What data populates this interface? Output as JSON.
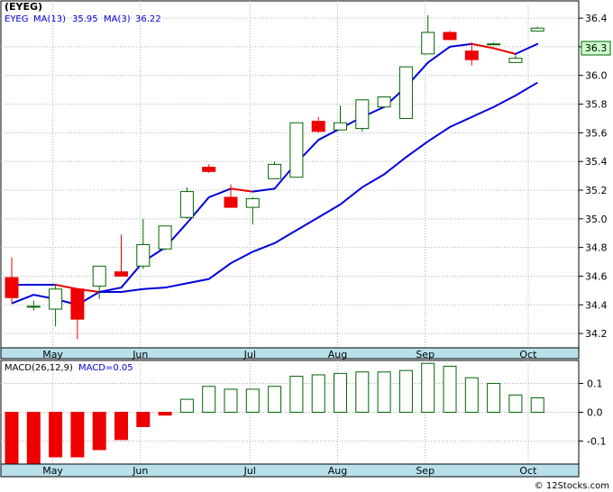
{
  "chart_data": [
    {
      "type": "candlestick",
      "ticker": "(EYEG)",
      "legend": [
        {
          "name": "MA(13)",
          "value": "35.95",
          "color": "#0000dd"
        },
        {
          "name": "MA(3)",
          "value": "36.22",
          "color": "#dd0000"
        }
      ],
      "last_price_label": "36.3",
      "ylim": [
        34.1,
        36.52
      ],
      "y_ticks": [
        "36.4",
        "36.2",
        "36.0",
        "35.8",
        "35.6",
        "35.4",
        "35.2",
        "35.0",
        "34.8",
        "34.6",
        "34.4",
        "34.2"
      ],
      "x_labels": [
        "May",
        "Jun",
        "Jul",
        "Aug",
        "Sep",
        "Oct"
      ],
      "x_label_weeks": [
        1.3,
        5.3,
        10.3,
        14.3,
        18.3,
        23.0
      ],
      "colors": {
        "up": "#006600",
        "down": "#ee0000",
        "ma13": "#0000dd",
        "ma3_up": "#0000dd",
        "ma3_down": "#ee0000",
        "axis_band": "#b8e0ea"
      },
      "candles": [
        {
          "o": 34.59,
          "h": 34.73,
          "l": 34.41,
          "c": 34.45
        },
        {
          "o": 34.39,
          "h": 34.43,
          "l": 34.36,
          "c": 34.39
        },
        {
          "o": 34.37,
          "h": 34.54,
          "l": 34.25,
          "c": 34.51
        },
        {
          "o": 34.51,
          "h": 34.51,
          "l": 34.16,
          "c": 34.3
        },
        {
          "o": 34.53,
          "h": 34.67,
          "l": 34.44,
          "c": 34.67
        },
        {
          "o": 34.63,
          "h": 34.89,
          "l": 34.6,
          "c": 34.6
        },
        {
          "o": 34.67,
          "h": 35.0,
          "l": 34.65,
          "c": 34.82
        },
        {
          "o": 34.79,
          "h": 34.95,
          "l": 34.78,
          "c": 34.95
        },
        {
          "o": 35.01,
          "h": 35.22,
          "l": 35.0,
          "c": 35.19
        },
        {
          "o": 35.36,
          "h": 35.38,
          "l": 35.32,
          "c": 35.33
        },
        {
          "o": 35.15,
          "h": 35.24,
          "l": 35.08,
          "c": 35.08
        },
        {
          "o": 35.08,
          "h": 35.15,
          "l": 34.96,
          "c": 35.14
        },
        {
          "o": 35.28,
          "h": 35.4,
          "l": 35.28,
          "c": 35.38
        },
        {
          "o": 35.29,
          "h": 35.67,
          "l": 35.29,
          "c": 35.67
        },
        {
          "o": 35.68,
          "h": 35.71,
          "l": 35.6,
          "c": 35.61
        },
        {
          "o": 35.62,
          "h": 35.79,
          "l": 35.62,
          "c": 35.67
        },
        {
          "o": 35.63,
          "h": 35.83,
          "l": 35.61,
          "c": 35.83
        },
        {
          "o": 35.78,
          "h": 35.85,
          "l": 35.78,
          "c": 35.85
        },
        {
          "o": 35.7,
          "h": 36.06,
          "l": 35.7,
          "c": 36.06
        },
        {
          "o": 36.15,
          "h": 36.42,
          "l": 36.15,
          "c": 36.3
        },
        {
          "o": 36.3,
          "h": 36.31,
          "l": 36.26,
          "c": 36.25
        },
        {
          "o": 36.17,
          "h": 36.23,
          "l": 36.07,
          "c": 36.11
        },
        {
          "o": 36.22,
          "h": 36.23,
          "l": 36.22,
          "c": 36.22
        },
        {
          "o": 36.09,
          "h": 36.14,
          "l": 36.09,
          "c": 36.12
        },
        {
          "o": 36.31,
          "h": 36.34,
          "l": 36.31,
          "c": 36.33
        }
      ],
      "ma13": [
        {
          "w": 0,
          "v": 34.41
        },
        {
          "w": 1,
          "v": 34.47
        },
        {
          "w": 2,
          "v": 34.44
        },
        {
          "w": 3,
          "v": 34.4
        },
        {
          "w": 4,
          "v": 34.49
        },
        {
          "w": 5,
          "v": 34.49
        },
        {
          "w": 6,
          "v": 34.51
        },
        {
          "w": 7,
          "v": 34.52
        },
        {
          "w": 8,
          "v": 34.55
        },
        {
          "w": 9,
          "v": 34.58
        },
        {
          "w": 10,
          "v": 34.69
        },
        {
          "w": 11,
          "v": 34.77
        },
        {
          "w": 12,
          "v": 34.83
        },
        {
          "w": 13,
          "v": 34.92
        },
        {
          "w": 14,
          "v": 35.01
        },
        {
          "w": 15,
          "v": 35.1
        },
        {
          "w": 16,
          "v": 35.22
        },
        {
          "w": 17,
          "v": 35.31
        },
        {
          "w": 18,
          "v": 35.43
        },
        {
          "w": 19,
          "v": 35.54
        },
        {
          "w": 20,
          "v": 35.64
        },
        {
          "w": 21,
          "v": 35.71
        },
        {
          "w": 22,
          "v": 35.78
        },
        {
          "w": 23,
          "v": 35.86
        },
        {
          "w": 24,
          "v": 35.95
        }
      ],
      "ma3": [
        {
          "w": 0,
          "v": 34.54
        },
        {
          "w": 1,
          "v": 34.54
        },
        {
          "w": 2,
          "v": 34.54
        },
        {
          "w": 3,
          "v": 34.51
        },
        {
          "w": 4,
          "v": 34.49
        },
        {
          "w": 5,
          "v": 34.52
        },
        {
          "w": 6,
          "v": 34.7
        },
        {
          "w": 7,
          "v": 34.8
        },
        {
          "w": 8,
          "v": 34.97
        },
        {
          "w": 9,
          "v": 35.15
        },
        {
          "w": 10,
          "v": 35.21
        },
        {
          "w": 11,
          "v": 35.19
        },
        {
          "w": 12,
          "v": 35.21
        },
        {
          "w": 13,
          "v": 35.39
        },
        {
          "w": 14,
          "v": 35.55
        },
        {
          "w": 15,
          "v": 35.63
        },
        {
          "w": 16,
          "v": 35.71
        },
        {
          "w": 17,
          "v": 35.78
        },
        {
          "w": 18,
          "v": 35.92
        },
        {
          "w": 19,
          "v": 36.09
        },
        {
          "w": 20,
          "v": 36.2
        },
        {
          "w": 21,
          "v": 36.22
        },
        {
          "w": 22,
          "v": 36.19
        },
        {
          "w": 23,
          "v": 36.15
        },
        {
          "w": 24,
          "v": 36.22
        }
      ]
    },
    {
      "type": "bar",
      "title": "MACD(26,12,9)",
      "legend_label": "MACD=0.05",
      "ylim": [
        -0.18,
        0.18
      ],
      "y_ticks": [
        "0.1",
        "0.0",
        "-0.1"
      ],
      "y_tick_values": [
        0.1,
        0.0,
        -0.1
      ],
      "values": [
        -0.18,
        -0.18,
        -0.155,
        -0.155,
        -0.13,
        -0.095,
        -0.05,
        -0.01,
        0.045,
        0.09,
        0.08,
        0.08,
        0.09,
        0.125,
        0.13,
        0.135,
        0.14,
        0.14,
        0.145,
        0.17,
        0.16,
        0.12,
        0.1,
        0.06,
        0.05
      ],
      "colors": {
        "positive": "#006600",
        "negative": "#ee0000"
      }
    }
  ],
  "footer": {
    "copyright": "© 12Stocks.com"
  }
}
